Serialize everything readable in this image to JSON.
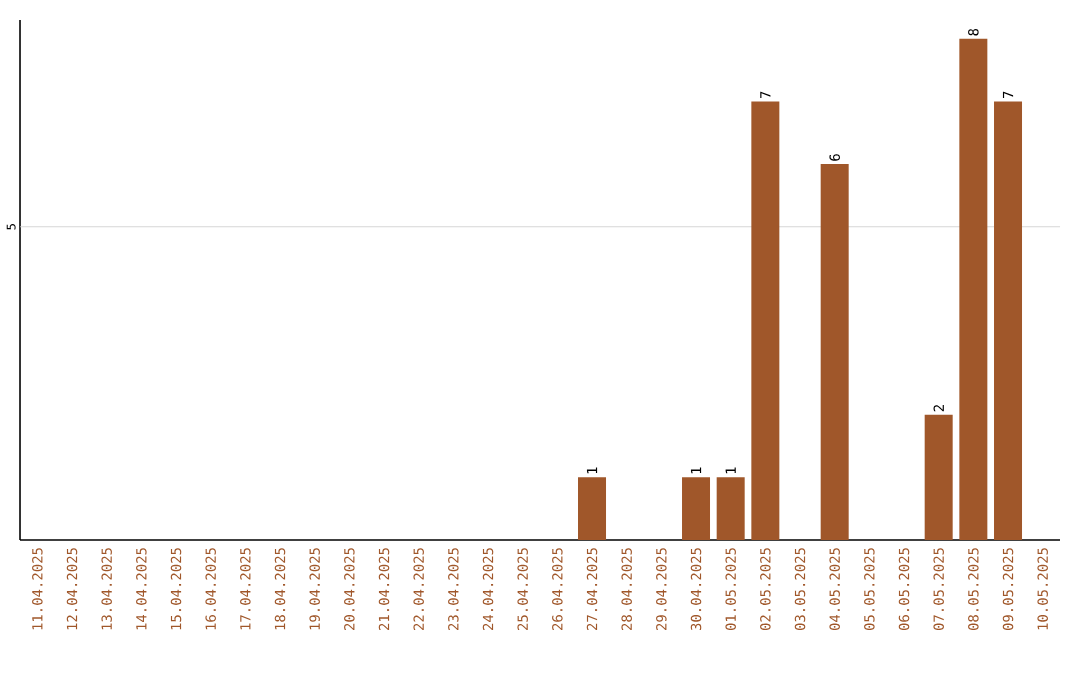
{
  "chart_data": {
    "type": "bar",
    "categories": [
      "11.04.2025",
      "12.04.2025",
      "13.04.2025",
      "14.04.2025",
      "15.04.2025",
      "16.04.2025",
      "17.04.2025",
      "18.04.2025",
      "19.04.2025",
      "20.04.2025",
      "21.04.2025",
      "22.04.2025",
      "23.04.2025",
      "24.04.2025",
      "25.04.2025",
      "26.04.2025",
      "27.04.2025",
      "28.04.2025",
      "29.04.2025",
      "30.04.2025",
      "01.05.2025",
      "02.05.2025",
      "03.05.2025",
      "04.05.2025",
      "05.05.2025",
      "06.05.2025",
      "07.05.2025",
      "08.05.2025",
      "09.05.2025",
      "10.05.2025"
    ],
    "values": [
      null,
      null,
      null,
      null,
      null,
      null,
      null,
      null,
      null,
      null,
      null,
      null,
      null,
      null,
      null,
      null,
      1,
      null,
      null,
      1,
      1,
      7,
      null,
      6,
      null,
      null,
      2,
      8,
      7,
      null
    ],
    "data_labels": true,
    "color": "#a0572a",
    "ylim": [
      0,
      8.3
    ],
    "ref_lines": [
      {
        "axis": "y",
        "value": 5,
        "label": "5",
        "color": "#cccccc"
      }
    ]
  }
}
